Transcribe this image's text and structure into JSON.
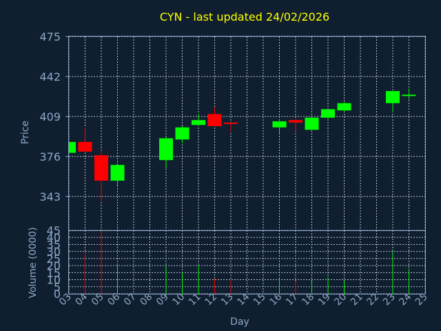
{
  "chart_data": {
    "type": "candlestick",
    "title": "CYN - last updated 24/02/2026",
    "xlabel": "Day",
    "price_panel": {
      "ylabel": "Price",
      "yticks": [
        343,
        376,
        409,
        442,
        475
      ],
      "ylim": [
        315,
        475
      ]
    },
    "volume_panel": {
      "ylabel": "Volume (0000)",
      "yticks": [
        0,
        5,
        10,
        15,
        20,
        25,
        30,
        35,
        40,
        45
      ],
      "ylim": [
        0,
        45
      ]
    },
    "x_tick_labels": [
      "03",
      "04",
      "05",
      "06",
      "07",
      "08",
      "09",
      "10",
      "11",
      "12",
      "13",
      "14",
      "15",
      "16",
      "17",
      "18",
      "19",
      "20",
      "21",
      "22",
      "23",
      "24",
      "25"
    ],
    "xlim": [
      3,
      25
    ],
    "grid": true,
    "up_color": "#00ff00",
    "down_color": "#ff0000",
    "candles": [
      {
        "day": "03",
        "open": 379,
        "high": 388,
        "low": 378,
        "close": 388,
        "volume": 0
      },
      {
        "day": "04",
        "open": 388,
        "high": 400,
        "low": 380,
        "close": 380,
        "volume": 29
      },
      {
        "day": "05",
        "open": 377,
        "high": 381,
        "low": 339,
        "close": 356,
        "volume": 45
      },
      {
        "day": "06",
        "open": 356,
        "high": 369,
        "low": 352,
        "close": 369,
        "volume": 20
      },
      {
        "day": "09",
        "open": 373,
        "high": 392,
        "low": 366,
        "close": 391,
        "volume": 19
      },
      {
        "day": "10",
        "open": 390,
        "high": 401,
        "low": 387,
        "close": 400,
        "volume": 15
      },
      {
        "day": "11",
        "open": 402,
        "high": 411,
        "low": 401,
        "close": 406,
        "volume": 20
      },
      {
        "day": "12",
        "open": 411,
        "high": 417,
        "low": 401,
        "close": 401,
        "volume": 11
      },
      {
        "day": "13",
        "open": 404,
        "high": 404,
        "low": 396,
        "close": 403,
        "volume": 10
      },
      {
        "day": "16",
        "open": 400,
        "high": 405,
        "low": 395,
        "close": 405,
        "volume": 11
      },
      {
        "day": "17",
        "open": 406,
        "high": 407,
        "low": 397,
        "close": 404,
        "volume": 9
      },
      {
        "day": "18",
        "open": 398,
        "high": 408,
        "low": 398,
        "close": 408,
        "volume": 9
      },
      {
        "day": "19",
        "open": 408,
        "high": 415,
        "low": 407,
        "close": 415,
        "volume": 12
      },
      {
        "day": "20",
        "open": 414,
        "high": 421,
        "low": 413,
        "close": 420,
        "volume": 9
      },
      {
        "day": "23",
        "open": 420,
        "high": 430,
        "low": 413,
        "close": 430,
        "volume": 30
      },
      {
        "day": "24",
        "open": 426,
        "high": 432,
        "low": 423,
        "close": 427,
        "volume": 18
      }
    ]
  }
}
